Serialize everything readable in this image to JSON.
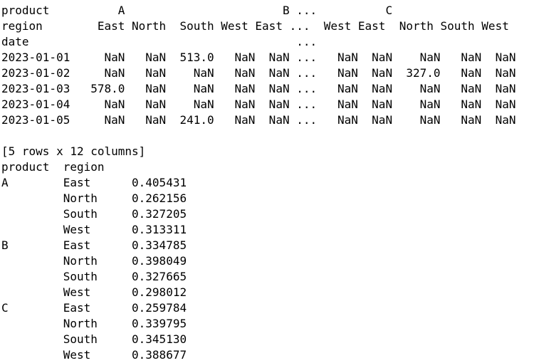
{
  "display": {
    "lines": [
      "product          A                       B ...          C",
      "region        East North  South West East ...  West East  North South West",
      "date                                       ...",
      "2023-01-01     NaN   NaN  513.0   NaN  NaN ...   NaN  NaN    NaN   NaN  NaN",
      "2023-01-02     NaN   NaN    NaN   NaN  NaN ...   NaN  NaN  327.0   NaN  NaN",
      "2023-01-03   578.0   NaN    NaN   NaN  NaN ...   NaN  NaN    NaN   NaN  NaN",
      "2023-01-04     NaN   NaN    NaN   NaN  NaN ...   NaN  NaN    NaN   NaN  NaN",
      "2023-01-05     NaN   NaN  241.0   NaN  NaN ...   NaN  NaN    NaN   NaN  NaN",
      "",
      "[5 rows x 12 columns]",
      "product  region",
      "A        East      0.405431",
      "         North     0.262156",
      "         South     0.327205",
      "         West      0.313311",
      "B        East      0.334785",
      "         North     0.398049",
      "         South     0.327665",
      "         West      0.298012",
      "C        East      0.259784",
      "         North     0.339795",
      "         South     0.345130",
      "         West      0.388677"
    ]
  },
  "pivot_table": {
    "column_level_names": [
      "product",
      "region"
    ],
    "index_name": "date",
    "products": [
      "A",
      "B",
      "C"
    ],
    "regions": [
      "East",
      "North",
      "South",
      "West"
    ],
    "dates": [
      "2023-01-01",
      "2023-01-02",
      "2023-01-03",
      "2023-01-04",
      "2023-01-05"
    ],
    "truncation_marker": "...",
    "missing_value_text": "NaN",
    "visible_cells": [
      {
        "date": "2023-01-01",
        "product": "A",
        "region": "South",
        "value": "513.0"
      },
      {
        "date": "2023-01-02",
        "product": "C",
        "region": "North",
        "value": "327.0"
      },
      {
        "date": "2023-01-03",
        "product": "A",
        "region": "East",
        "value": "578.0"
      },
      {
        "date": "2023-01-05",
        "product": "A",
        "region": "South",
        "value": "241.0"
      }
    ],
    "shape_note": "[5 rows x 12 columns]"
  },
  "series_output": {
    "index_header": [
      "product",
      "region"
    ],
    "rows": [
      {
        "product": "A",
        "region": "East",
        "value": "0.405431"
      },
      {
        "product": "",
        "region": "North",
        "value": "0.262156"
      },
      {
        "product": "",
        "region": "South",
        "value": "0.327205"
      },
      {
        "product": "",
        "region": "West",
        "value": "0.313311"
      },
      {
        "product": "B",
        "region": "East",
        "value": "0.334785"
      },
      {
        "product": "",
        "region": "North",
        "value": "0.398049"
      },
      {
        "product": "",
        "region": "South",
        "value": "0.327665"
      },
      {
        "product": "",
        "region": "West",
        "value": "0.298012"
      },
      {
        "product": "C",
        "region": "East",
        "value": "0.259784"
      },
      {
        "product": "",
        "region": "North",
        "value": "0.339795"
      },
      {
        "product": "",
        "region": "South",
        "value": "0.345130"
      },
      {
        "product": "",
        "region": "West",
        "value": "0.388677"
      }
    ],
    "last_row_clipped": true
  },
  "colors": {
    "background": "#ffffff",
    "text": "#000000"
  }
}
